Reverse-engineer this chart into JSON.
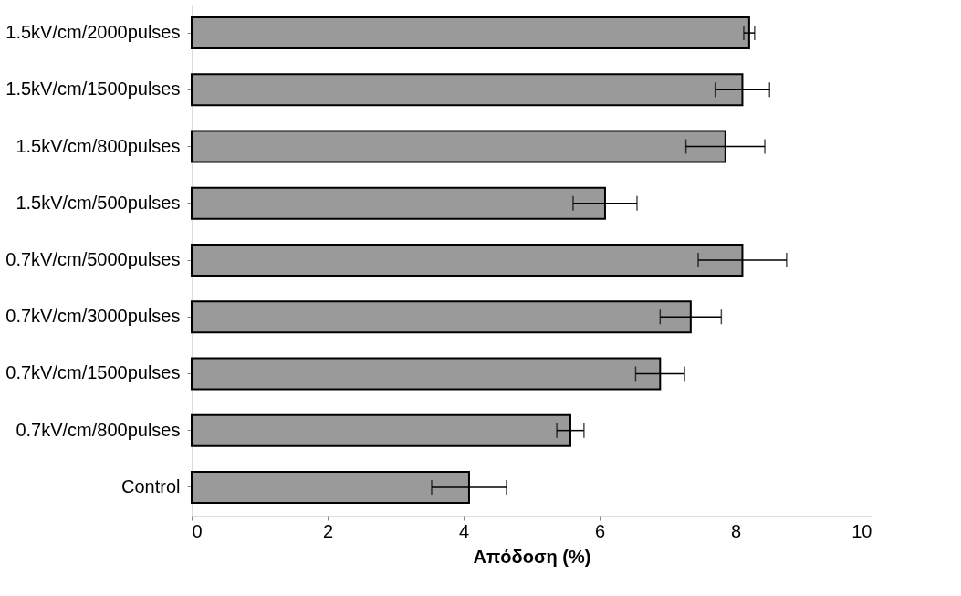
{
  "chart_data": {
    "type": "bar",
    "orientation": "horizontal",
    "xlabel": "Απόδοση (%)",
    "categories": [
      "1.5kV/cm/2000pulses",
      "1.5kV/cm/1500pulses",
      "1.5kV/cm/800pulses",
      "1.5kV/cm/500pulses",
      "0.7kV/cm/5000pulses",
      "0.7kV/cm/3000pulses",
      "0.7kV/cm/1500pulses",
      "0.7kV/cm/800pulses",
      "Control"
    ],
    "values": [
      8.2,
      8.1,
      7.85,
      6.08,
      8.1,
      7.34,
      6.89,
      5.57,
      4.08
    ],
    "errors": [
      0.08,
      0.4,
      0.58,
      0.47,
      0.65,
      0.45,
      0.36,
      0.2,
      0.55
    ],
    "color": "#9a9a9a",
    "xlim": [
      0,
      10
    ],
    "xticks": [
      0,
      2,
      4,
      6,
      8,
      10
    ],
    "grid": false
  }
}
